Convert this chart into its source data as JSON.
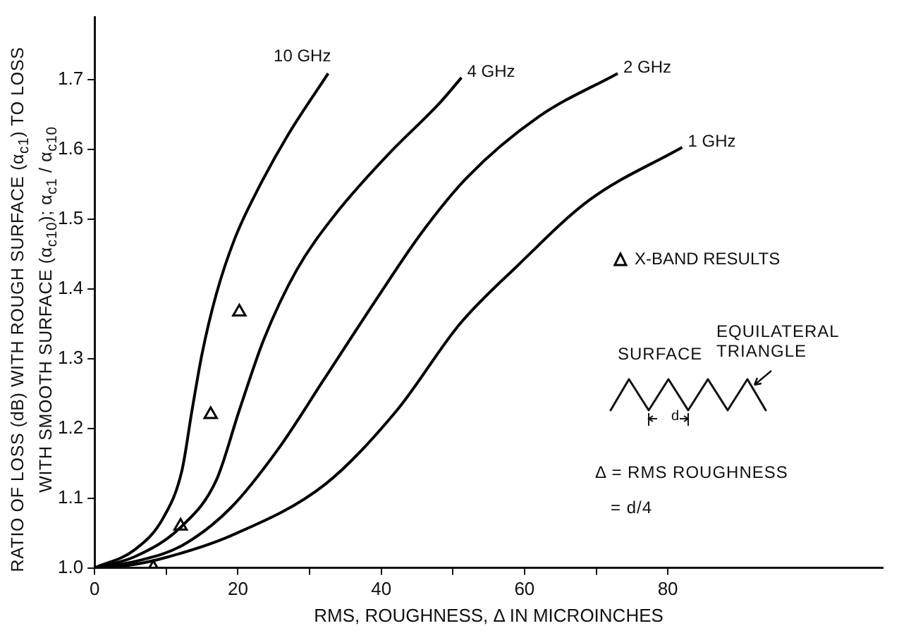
{
  "chart_data": {
    "type": "line",
    "xlabel": "RMS, ROUGHNESS, Δ IN MICROINCHES",
    "ylabel": "RATIO OF LOSS (dB) WITH ROUGH SURFACE (α$_{c1}$) TO LOSS WITH SMOOTH SURFACE (α$_{c10}$); α$_{c1}$ / α$_{c10}$",
    "xlim": [
      0,
      110
    ],
    "xticks": [
      0,
      {
        "value": 10,
        "label": null
      },
      20,
      {
        "value": 30,
        "label": null
      },
      40,
      {
        "value": 50,
        "label": null
      },
      60,
      {
        "value": 70,
        "label": null
      },
      80
    ],
    "ylim": [
      1.0,
      1.79
    ],
    "yticks": [
      {
        "value": 1.0,
        "label": "1.0"
      },
      1.1,
      1.2,
      1.3,
      1.4,
      1.5,
      1.6,
      1.7
    ],
    "grid": false,
    "legend": "right",
    "line_style": "solid",
    "series": [
      {
        "name": "10 GHz",
        "color": "#000000",
        "marker": "none",
        "x": [
          0,
          5.6,
          9.6,
          12.2,
          13.6,
          15,
          17,
          19.6,
          23,
          27,
          32.6
        ],
        "values": [
          1.0,
          1.026,
          1.072,
          1.14,
          1.226,
          1.307,
          1.393,
          1.473,
          1.547,
          1.621,
          1.709
        ]
      },
      {
        "name": "4 GHz",
        "color": "#000000",
        "marker": "none",
        "x": [
          0,
          5.6,
          12.2,
          17,
          20.2,
          23.6,
          28.2,
          33.6,
          41,
          48.2,
          51.2
        ],
        "values": [
          1.0,
          1.016,
          1.06,
          1.126,
          1.226,
          1.327,
          1.427,
          1.507,
          1.593,
          1.667,
          1.703
        ]
      },
      {
        "name": "2 GHz",
        "color": "#000000",
        "marker": "none",
        "x": [
          0,
          6,
          12.2,
          19,
          25.6,
          32,
          39,
          45.6,
          52,
          62,
          73
        ],
        "values": [
          1.0,
          1.01,
          1.032,
          1.086,
          1.17,
          1.27,
          1.38,
          1.48,
          1.56,
          1.647,
          1.709
        ]
      },
      {
        "name": "1 GHz",
        "color": "#000000",
        "marker": "none",
        "x": [
          0,
          5,
          10,
          19,
          32.2,
          42.2,
          51,
          59,
          69,
          82
        ],
        "values": [
          1.0,
          1.004,
          1.015,
          1.046,
          1.12,
          1.226,
          1.35,
          1.433,
          1.527,
          1.603
        ]
      },
      {
        "name": "X-BAND RESULTS",
        "type": "scatter",
        "color": "#000000",
        "marker": "triangle",
        "x": [
          8.2,
          12,
          16.2,
          20.2
        ],
        "values": [
          1.0,
          1.06,
          1.22,
          1.367
        ]
      }
    ],
    "annotations": [
      "SURFACE",
      "EQUILATERAL TRIANGLE",
      "d",
      "Δ = RMS ROUGHNESS",
      "= d/4"
    ]
  }
}
